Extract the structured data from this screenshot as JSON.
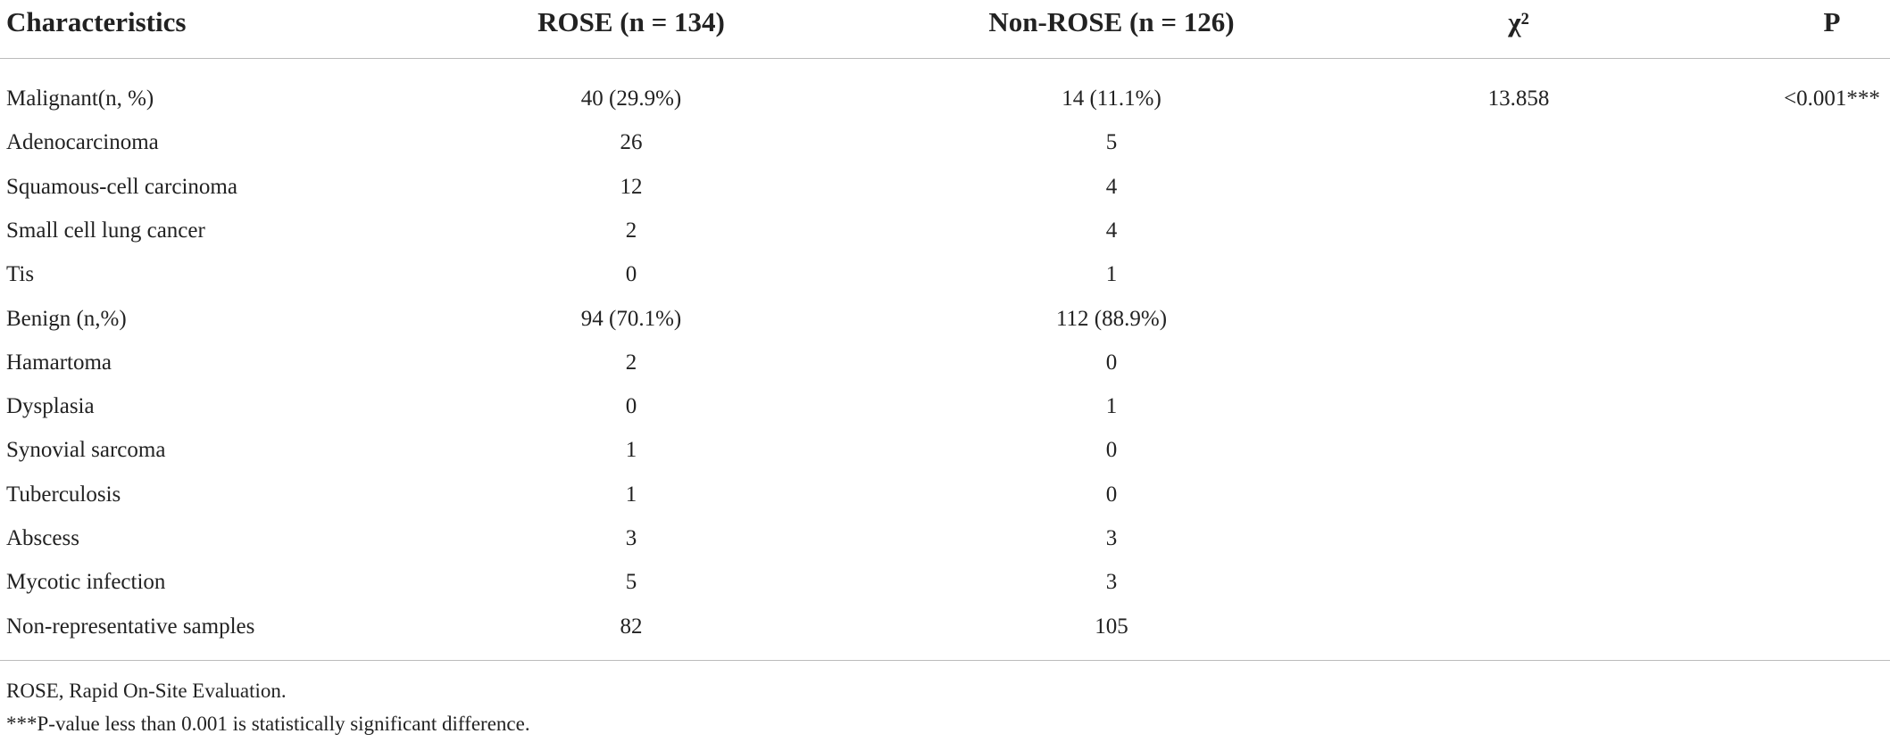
{
  "table": {
    "header": [
      "Characteristics",
      "ROSE (n = 134)",
      "Non-ROSE (n = 126)",
      "χ²",
      "P"
    ],
    "rows": [
      [
        "Malignant(n, %)",
        "40 (29.9%)",
        "14 (11.1%)",
        "13.858",
        "<0.001***"
      ],
      [
        "Adenocarcinoma",
        "26",
        "5"
      ],
      [
        "Squamous-cell carcinoma",
        "12",
        "4"
      ],
      [
        "Small cell lung cancer",
        "2",
        "4"
      ],
      [
        "Tis",
        "0",
        "1"
      ],
      [
        "Benign (n,%)",
        "94 (70.1%)",
        "112 (88.9%)"
      ],
      [
        "Hamartoma",
        "2",
        "0"
      ],
      [
        "Dysplasia",
        "0",
        "1"
      ],
      [
        "Synovial sarcoma",
        "1",
        "0"
      ],
      [
        "Tuberculosis",
        "1",
        "0"
      ],
      [
        "Abscess",
        "3",
        "3"
      ],
      [
        "Mycotic infection",
        "5",
        "3"
      ],
      [
        "Non-representative samples",
        "82",
        "105"
      ]
    ]
  },
  "footnotes": [
    "ROSE, Rapid On-Site Evaluation.",
    "***P-value less than 0.001 is statistically significant difference."
  ]
}
